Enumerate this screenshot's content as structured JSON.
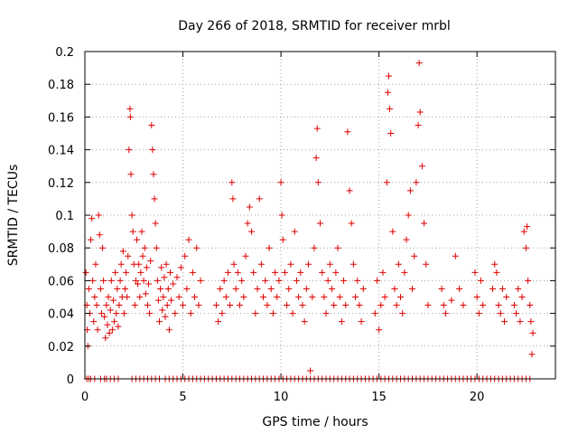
{
  "chart_data": {
    "type": "scatter",
    "title": "Day 266 of 2018, SRMTID for receiver mrbl",
    "xlabel": "GPS time / hours",
    "ylabel": "SRMTID / TECUs",
    "xlim": [
      0,
      24
    ],
    "ylim": [
      0,
      0.2
    ],
    "xticks": [
      0,
      5,
      10,
      15,
      20
    ],
    "yticks": [
      0,
      0.02,
      0.04,
      0.06,
      0.08,
      0.1,
      0.12,
      0.14,
      0.16,
      0.18,
      0.2
    ],
    "xtick_labels": [
      "0",
      "5",
      "10",
      "15",
      "20"
    ],
    "ytick_labels": [
      "0",
      "0.02",
      "0.04",
      "0.06",
      "0.08",
      "0.1",
      "0.12",
      "0.14",
      "0.16",
      "0.18",
      "0.2"
    ],
    "grid": true,
    "marker": "+",
    "color": "#e00000",
    "series": [
      {
        "name": "SRMTID",
        "points": [
          [
            0.05,
            0.065
          ],
          [
            0.1,
            0.045
          ],
          [
            0.12,
            0.03
          ],
          [
            0.15,
            0.02
          ],
          [
            0.2,
            0.055
          ],
          [
            0.25,
            0.04
          ],
          [
            0.3,
            0.085
          ],
          [
            0.35,
            0.098
          ],
          [
            0.4,
            0.06
          ],
          [
            0.45,
            0.035
          ],
          [
            0.5,
            0.05
          ],
          [
            0.55,
            0.07
          ],
          [
            0.6,
            0.045
          ],
          [
            0.65,
            0.03
          ],
          [
            0.7,
            0.1
          ],
          [
            0.75,
            0.088
          ],
          [
            0.8,
            0.055
          ],
          [
            0.85,
            0.04
          ],
          [
            0.9,
            0.08
          ],
          [
            0.95,
            0.06
          ],
          [
            1.0,
            0.038
          ],
          [
            1.05,
            0.025
          ],
          [
            1.1,
            0.045
          ],
          [
            1.15,
            0.033
          ],
          [
            1.2,
            0.05
          ],
          [
            1.25,
            0.028
          ],
          [
            1.3,
            0.042
          ],
          [
            1.35,
            0.06
          ],
          [
            1.4,
            0.03
          ],
          [
            1.45,
            0.048
          ],
          [
            1.5,
            0.035
          ],
          [
            1.55,
            0.065
          ],
          [
            1.6,
            0.04
          ],
          [
            1.65,
            0.055
          ],
          [
            1.7,
            0.032
          ],
          [
            1.75,
            0.045
          ],
          [
            1.8,
            0.06
          ],
          [
            1.85,
            0.07
          ],
          [
            1.9,
            0.05
          ],
          [
            1.95,
            0.078
          ],
          [
            2.0,
            0.04
          ],
          [
            2.05,
            0.055
          ],
          [
            2.1,
            0.065
          ],
          [
            2.15,
            0.05
          ],
          [
            2.2,
            0.075
          ],
          [
            2.25,
            0.14
          ],
          [
            2.3,
            0.165
          ],
          [
            2.32,
            0.16
          ],
          [
            2.35,
            0.125
          ],
          [
            2.4,
            0.1
          ],
          [
            2.45,
            0.09
          ],
          [
            2.5,
            0.07
          ],
          [
            2.55,
            0.045
          ],
          [
            2.6,
            0.06
          ],
          [
            2.65,
            0.085
          ],
          [
            2.7,
            0.058
          ],
          [
            2.75,
            0.07
          ],
          [
            2.8,
            0.05
          ],
          [
            2.85,
            0.065
          ],
          [
            2.9,
            0.09
          ],
          [
            2.95,
            0.075
          ],
          [
            3.0,
            0.06
          ],
          [
            3.05,
            0.08
          ],
          [
            3.1,
            0.052
          ],
          [
            3.15,
            0.068
          ],
          [
            3.2,
            0.045
          ],
          [
            3.25,
            0.058
          ],
          [
            3.3,
            0.04
          ],
          [
            3.35,
            0.072
          ],
          [
            3.4,
            0.155
          ],
          [
            3.45,
            0.14
          ],
          [
            3.5,
            0.125
          ],
          [
            3.55,
            0.11
          ],
          [
            3.6,
            0.095
          ],
          [
            3.65,
            0.08
          ],
          [
            3.7,
            0.06
          ],
          [
            3.75,
            0.048
          ],
          [
            3.8,
            0.035
          ],
          [
            3.85,
            0.055
          ],
          [
            3.9,
            0.068
          ],
          [
            3.95,
            0.042
          ],
          [
            4.0,
            0.05
          ],
          [
            4.05,
            0.062
          ],
          [
            4.1,
            0.038
          ],
          [
            4.15,
            0.07
          ],
          [
            4.2,
            0.045
          ],
          [
            4.25,
            0.055
          ],
          [
            4.3,
            0.03
          ],
          [
            4.35,
            0.065
          ],
          [
            4.4,
            0.048
          ],
          [
            4.5,
            0.058
          ],
          [
            4.6,
            0.04
          ],
          [
            4.7,
            0.062
          ],
          [
            4.8,
            0.05
          ],
          [
            4.9,
            0.068
          ],
          [
            5.0,
            0.045
          ],
          [
            5.1,
            0.075
          ],
          [
            5.2,
            0.055
          ],
          [
            5.3,
            0.085
          ],
          [
            5.4,
            0.04
          ],
          [
            5.5,
            0.065
          ],
          [
            5.6,
            0.05
          ],
          [
            5.7,
            0.08
          ],
          [
            5.8,
            0.045
          ],
          [
            5.9,
            0.06
          ],
          [
            6.7,
            0.045
          ],
          [
            6.8,
            0.035
          ],
          [
            6.9,
            0.055
          ],
          [
            7.0,
            0.04
          ],
          [
            7.1,
            0.06
          ],
          [
            7.2,
            0.05
          ],
          [
            7.3,
            0.065
          ],
          [
            7.4,
            0.045
          ],
          [
            7.5,
            0.12
          ],
          [
            7.55,
            0.11
          ],
          [
            7.6,
            0.07
          ],
          [
            7.7,
            0.055
          ],
          [
            7.8,
            0.065
          ],
          [
            7.9,
            0.045
          ],
          [
            8.0,
            0.06
          ],
          [
            8.1,
            0.05
          ],
          [
            8.2,
            0.075
          ],
          [
            8.3,
            0.095
          ],
          [
            8.4,
            0.105
          ],
          [
            8.5,
            0.09
          ],
          [
            8.6,
            0.065
          ],
          [
            8.7,
            0.04
          ],
          [
            8.8,
            0.055
          ],
          [
            8.9,
            0.11
          ],
          [
            9.0,
            0.07
          ],
          [
            9.1,
            0.05
          ],
          [
            9.2,
            0.06
          ],
          [
            9.3,
            0.045
          ],
          [
            9.4,
            0.08
          ],
          [
            9.5,
            0.055
          ],
          [
            9.6,
            0.04
          ],
          [
            9.7,
            0.065
          ],
          [
            9.8,
            0.05
          ],
          [
            9.9,
            0.06
          ],
          [
            10.0,
            0.12
          ],
          [
            10.05,
            0.1
          ],
          [
            10.1,
            0.085
          ],
          [
            10.2,
            0.065
          ],
          [
            10.3,
            0.045
          ],
          [
            10.4,
            0.055
          ],
          [
            10.5,
            0.07
          ],
          [
            10.6,
            0.04
          ],
          [
            10.7,
            0.09
          ],
          [
            10.8,
            0.06
          ],
          [
            10.9,
            0.05
          ],
          [
            11.0,
            0.065
          ],
          [
            11.1,
            0.045
          ],
          [
            11.2,
            0.035
          ],
          [
            11.3,
            0.055
          ],
          [
            11.4,
            0.07
          ],
          [
            11.5,
            0.005
          ],
          [
            11.6,
            0.05
          ],
          [
            11.7,
            0.08
          ],
          [
            11.8,
            0.135
          ],
          [
            11.85,
            0.153
          ],
          [
            11.9,
            0.12
          ],
          [
            12.0,
            0.095
          ],
          [
            12.1,
            0.065
          ],
          [
            12.2,
            0.05
          ],
          [
            12.3,
            0.04
          ],
          [
            12.4,
            0.06
          ],
          [
            12.5,
            0.07
          ],
          [
            12.6,
            0.055
          ],
          [
            12.7,
            0.045
          ],
          [
            12.8,
            0.065
          ],
          [
            12.9,
            0.08
          ],
          [
            13.0,
            0.05
          ],
          [
            13.1,
            0.035
          ],
          [
            13.2,
            0.06
          ],
          [
            13.3,
            0.045
          ],
          [
            13.4,
            0.151
          ],
          [
            13.5,
            0.115
          ],
          [
            13.6,
            0.095
          ],
          [
            13.7,
            0.07
          ],
          [
            13.8,
            0.05
          ],
          [
            13.9,
            0.06
          ],
          [
            14.0,
            0.045
          ],
          [
            14.1,
            0.035
          ],
          [
            14.2,
            0.055
          ],
          [
            14.8,
            0.04
          ],
          [
            14.9,
            0.06
          ],
          [
            15.0,
            0.03
          ],
          [
            15.1,
            0.045
          ],
          [
            15.2,
            0.065
          ],
          [
            15.3,
            0.05
          ],
          [
            15.4,
            0.12
          ],
          [
            15.45,
            0.175
          ],
          [
            15.5,
            0.185
          ],
          [
            15.55,
            0.165
          ],
          [
            15.6,
            0.15
          ],
          [
            15.7,
            0.09
          ],
          [
            15.8,
            0.055
          ],
          [
            15.9,
            0.045
          ],
          [
            16.0,
            0.07
          ],
          [
            16.1,
            0.05
          ],
          [
            16.2,
            0.04
          ],
          [
            16.3,
            0.065
          ],
          [
            16.4,
            0.085
          ],
          [
            16.5,
            0.1
          ],
          [
            16.6,
            0.115
          ],
          [
            16.7,
            0.055
          ],
          [
            16.8,
            0.075
          ],
          [
            16.9,
            0.12
          ],
          [
            17.0,
            0.155
          ],
          [
            17.05,
            0.193
          ],
          [
            17.1,
            0.163
          ],
          [
            17.2,
            0.13
          ],
          [
            17.3,
            0.095
          ],
          [
            17.4,
            0.07
          ],
          [
            17.5,
            0.045
          ],
          [
            18.2,
            0.055
          ],
          [
            18.3,
            0.045
          ],
          [
            18.4,
            0.04
          ],
          [
            18.7,
            0.048
          ],
          [
            18.9,
            0.075
          ],
          [
            19.1,
            0.055
          ],
          [
            19.3,
            0.045
          ],
          [
            19.9,
            0.065
          ],
          [
            20.0,
            0.05
          ],
          [
            20.1,
            0.04
          ],
          [
            20.2,
            0.06
          ],
          [
            20.3,
            0.045
          ],
          [
            20.8,
            0.055
          ],
          [
            20.9,
            0.07
          ],
          [
            21.0,
            0.065
          ],
          [
            21.1,
            0.045
          ],
          [
            21.2,
            0.04
          ],
          [
            21.3,
            0.055
          ],
          [
            21.4,
            0.035
          ],
          [
            21.5,
            0.05
          ],
          [
            21.9,
            0.045
          ],
          [
            22.0,
            0.04
          ],
          [
            22.1,
            0.055
          ],
          [
            22.2,
            0.035
          ],
          [
            22.3,
            0.05
          ],
          [
            22.4,
            0.09
          ],
          [
            22.5,
            0.08
          ],
          [
            22.55,
            0.093
          ],
          [
            22.6,
            0.06
          ],
          [
            22.7,
            0.045
          ],
          [
            22.75,
            0.035
          ],
          [
            22.8,
            0.015
          ],
          [
            22.85,
            0.028
          ]
        ]
      }
    ],
    "zero_points_x": [
      0.1,
      0.2,
      0.3,
      0.5,
      0.8,
      1.0,
      1.1,
      1.3,
      1.5,
      1.7,
      2.4,
      2.6,
      2.8,
      3.0,
      3.2,
      3.4,
      3.6,
      3.8,
      4.1,
      4.3,
      4.5,
      4.7,
      4.9,
      5.1,
      5.3,
      5.5,
      5.7,
      5.9,
      6.1,
      6.3,
      6.5,
      6.7,
      6.9,
      7.1,
      7.3,
      7.5,
      7.7,
      7.9,
      8.1,
      8.3,
      8.5,
      8.7,
      8.9,
      9.1,
      9.3,
      9.5,
      9.7,
      9.9,
      10.1,
      10.3,
      10.5,
      10.7,
      10.9,
      11.1,
      11.3,
      11.5,
      11.7,
      11.9,
      12.1,
      12.3,
      12.5,
      12.7,
      12.9,
      13.1,
      13.3,
      13.5,
      13.7,
      13.9,
      14.1,
      14.3,
      14.5,
      14.7,
      14.9,
      15.1,
      15.3,
      15.5,
      15.7,
      15.9,
      16.1,
      16.3,
      16.5,
      16.7,
      16.9,
      17.1,
      17.3,
      17.5,
      17.7,
      17.9,
      18.1,
      18.3,
      18.5,
      18.7,
      18.9,
      19.1,
      19.3,
      19.5,
      19.7,
      19.9,
      20.1,
      20.3,
      20.5,
      20.7,
      20.9,
      21.1,
      21.3,
      21.5,
      21.7,
      21.9,
      22.1,
      22.3,
      22.5,
      22.7
    ]
  }
}
